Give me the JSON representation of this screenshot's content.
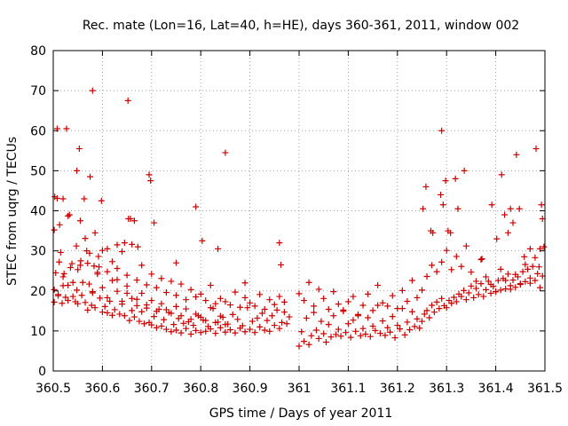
{
  "chart_data": {
    "type": "scatter",
    "title": "Rec. mate (Lon=16, Lat=40, h=HE), days 360-361, 2011, window 002",
    "xlabel": "GPS time / Days of year 2011",
    "ylabel": "STEC from uqrg / TECUs",
    "xlim": [
      360.5,
      361.5
    ],
    "ylim": [
      0,
      80
    ],
    "xticks": [
      360.5,
      360.6,
      360.7,
      360.8,
      360.9,
      361,
      361.1,
      361.2,
      361.3,
      361.4,
      361.5
    ],
    "xtick_labels": [
      "360.5",
      "360.6",
      "360.7",
      "360.8",
      "360.9",
      "361",
      "361.1",
      "361.2",
      "361.3",
      "361.4",
      "361.5"
    ],
    "yticks": [
      0,
      10,
      20,
      30,
      40,
      50,
      60,
      70,
      80
    ],
    "ytick_labels": [
      "0",
      "10",
      "20",
      "30",
      "40",
      "50",
      "60",
      "70",
      "80"
    ],
    "grid": true,
    "marker": "+",
    "marker_color": "#cc0000",
    "series": [
      {
        "x": [
          360.502,
          360.505,
          360.51,
          360.512,
          360.518,
          360.52,
          360.525,
          360.53,
          360.535,
          360.54,
          360.545,
          360.548,
          360.55,
          360.555,
          360.558,
          360.565,
          360.57,
          360.573,
          360.578,
          360.58,
          360.585,
          360.59,
          360.595,
          360.6,
          360.605,
          360.61,
          360.615,
          360.62,
          360.625,
          360.63,
          360.635,
          360.64,
          360.645,
          360.65,
          360.655,
          360.66,
          360.665,
          360.67,
          360.675,
          360.68,
          360.685,
          360.69,
          360.695,
          360.7,
          360.705,
          360.71,
          360.715,
          360.72,
          360.725,
          360.73,
          360.735,
          360.74,
          360.745,
          360.75,
          360.755,
          360.76,
          360.765,
          360.77,
          360.775,
          360.78,
          360.785,
          360.79,
          360.795,
          360.8,
          360.805,
          360.81,
          360.815,
          360.82,
          360.825,
          360.83,
          360.835,
          360.84,
          360.845,
          360.85,
          360.855,
          360.86,
          360.865,
          360.87,
          360.875,
          360.88,
          360.885,
          360.89,
          360.895,
          360.9,
          360.905,
          360.91,
          360.915,
          360.92,
          360.925,
          360.93,
          360.935,
          360.94,
          360.945,
          360.95,
          360.955,
          360.96,
          360.965,
          360.97,
          360.975,
          360.98,
          360.502,
          360.508,
          360.515,
          360.522,
          360.53,
          360.538,
          360.547,
          360.556,
          360.565,
          360.574,
          360.583,
          360.592,
          360.6,
          360.61,
          360.62,
          360.63,
          360.64,
          360.65,
          360.66,
          360.67,
          360.68,
          360.69,
          360.7,
          360.71,
          360.72,
          360.73,
          360.74,
          360.75,
          360.76,
          360.77,
          360.78,
          360.79,
          360.8,
          360.81,
          360.82,
          360.83,
          360.84,
          360.85,
          360.86,
          360.87,
          360.88,
          360.89,
          360.9,
          360.91,
          360.92,
          360.93,
          360.94,
          360.95,
          360.96,
          360.97,
          360.502,
          360.51,
          360.52,
          360.53,
          360.54,
          360.55,
          360.56,
          360.57,
          360.58,
          360.59,
          360.6,
          360.61,
          360.62,
          360.63,
          360.64,
          360.65,
          360.66,
          360.67,
          360.68,
          360.69,
          360.7,
          360.71,
          360.72,
          360.73,
          360.74,
          360.75,
          360.76,
          360.77,
          360.78,
          360.79,
          360.8,
          360.81,
          360.82,
          360.83,
          360.84,
          360.85,
          360.503,
          360.508,
          360.513,
          360.52,
          360.527,
          360.533,
          360.548,
          360.553,
          360.555,
          360.563,
          360.568,
          360.575,
          360.58,
          360.585,
          360.593,
          360.598,
          360.61,
          360.63,
          360.645,
          360.652,
          360.653,
          360.657,
          360.665,
          360.672,
          360.695,
          360.698,
          360.705,
          360.75,
          360.79,
          360.803,
          360.835,
          360.85,
          360.89,
          360.96,
          360.963,
          361.0,
          361.005,
          361.01,
          361.015,
          361.02,
          361.025,
          361.03,
          361.035,
          361.04,
          361.045,
          361.05,
          361.055,
          361.06,
          361.065,
          361.07,
          361.075,
          361.08,
          361.085,
          361.09,
          361.095,
          361.1,
          361.105,
          361.11,
          361.115,
          361.12,
          361.125,
          361.13,
          361.135,
          361.14,
          361.145,
          361.15,
          361.155,
          361.16,
          361.165,
          361.17,
          361.175,
          361.18,
          361.185,
          361.19,
          361.195,
          361.2,
          361.205,
          361.21,
          361.215,
          361.22,
          361.225,
          361.23,
          361.235,
          361.24,
          361.245,
          361.0,
          361.01,
          361.02,
          361.03,
          361.04,
          361.05,
          361.06,
          361.07,
          361.08,
          361.09,
          361.1,
          361.11,
          361.12,
          361.13,
          361.14,
          361.15,
          361.16,
          361.17,
          361.18,
          361.19,
          361.2,
          361.21,
          361.22,
          361.23,
          361.24,
          361.25,
          361.255,
          361.26,
          361.265,
          361.27,
          361.275,
          361.28,
          361.285,
          361.29,
          361.295,
          361.3,
          361.305,
          361.31,
          361.315,
          361.32,
          361.325,
          361.33,
          361.335,
          361.34,
          361.345,
          361.35,
          361.355,
          361.36,
          361.365,
          361.37,
          361.375,
          361.38,
          361.385,
          361.39,
          361.395,
          361.4,
          361.405,
          361.41,
          361.415,
          361.42,
          361.425,
          361.43,
          361.435,
          361.44,
          361.445,
          361.45,
          361.455,
          361.46,
          361.465,
          361.47,
          361.475,
          361.48,
          361.485,
          361.49,
          361.495,
          361.25,
          361.26,
          361.27,
          361.28,
          361.29,
          361.3,
          361.31,
          361.32,
          361.33,
          361.34,
          361.35,
          361.36,
          361.37,
          361.38,
          361.39,
          361.4,
          361.41,
          361.42,
          361.43,
          361.44,
          361.45,
          361.46,
          361.47,
          361.48,
          361.49,
          361.252,
          361.258,
          361.268,
          361.272,
          361.288,
          361.29,
          361.293,
          361.298,
          361.303,
          361.308,
          361.318,
          361.323,
          361.336,
          361.372,
          361.392,
          361.402,
          361.412,
          361.418,
          361.425,
          361.43,
          361.435,
          361.442,
          361.448,
          361.458,
          361.47,
          361.482,
          361.488,
          361.493,
          361.495,
          361.498
        ],
        "y": [
          17.2,
          24.5,
          18.8,
          27.2,
          16.9,
          21.3,
          18.4,
          17.6,
          25.8,
          22.1,
          17.3,
          20.2,
          16.8,
          26.4,
          18.9,
          17.1,
          15.2,
          21.7,
          16.4,
          19.8,
          15.8,
          24.6,
          18.2,
          14.7,
          16.1,
          14.5,
          17.4,
          13.9,
          15.3,
          22.8,
          14.2,
          16.7,
          13.8,
          19.4,
          12.6,
          15.1,
          13.5,
          17.9,
          12.4,
          14.8,
          11.8,
          16.5,
          12.1,
          11.5,
          13.6,
          10.8,
          15.4,
          11.2,
          12.8,
          10.4,
          14.6,
          9.8,
          11.6,
          10.2,
          13.1,
          9.5,
          11.9,
          10.6,
          12.3,
          9.2,
          11.4,
          10.1,
          13.8,
          9.6,
          12.7,
          9.9,
          11.1,
          10.5,
          15.6,
          9.4,
          12.2,
          10.8,
          13.4,
          9.7,
          11.7,
          10.3,
          14.1,
          9.5,
          12.9,
          10.7,
          11.3,
          9.8,
          15.8,
          10.4,
          12.4,
          9.6,
          13.2,
          11.0,
          14.4,
          10.2,
          12.6,
          9.9,
          13.8,
          11.4,
          15.2,
          10.6,
          12.1,
          14.7,
          11.8,
          13.5,
          35.2,
          43.1,
          29.6,
          24.3,
          38.7,
          26.8,
          31.2,
          27.5,
          33.1,
          29.4,
          26.2,
          28.6,
          30.1,
          24.8,
          27.3,
          25.6,
          29.8,
          23.9,
          31.6,
          22.7,
          26.4,
          21.5,
          24.2,
          20.8,
          23.1,
          19.6,
          22.4,
          18.9,
          21.7,
          17.8,
          20.3,
          18.5,
          19.2,
          17.6,
          21.4,
          16.8,
          18.1,
          17.3,
          16.5,
          19.7,
          15.9,
          18.3,
          17.0,
          16.2,
          19.1,
          15.4,
          17.8,
          16.6,
          18.6,
          17.2,
          20.3,
          19.1,
          23.5,
          21.4,
          18.6,
          25.3,
          22.1,
          26.9,
          19.5,
          24.2,
          20.8,
          18.3,
          22.6,
          19.9,
          17.4,
          21.2,
          18.1,
          16.3,
          19.4,
          15.7,
          17.6,
          14.9,
          16.8,
          15.3,
          14.4,
          16.1,
          13.8,
          15.5,
          12.9,
          14.2,
          13.4,
          12.6,
          15.8,
          12.1,
          13.7,
          11.6,
          43.5,
          60.5,
          36.5,
          43.0,
          60.5,
          39.0,
          50.0,
          55.5,
          37.5,
          43.0,
          30.0,
          48.5,
          70.0,
          34.5,
          26.0,
          42.5,
          30.5,
          31.5,
          32.0,
          67.5,
          38.0,
          38.0,
          37.5,
          31.0,
          49.0,
          47.5,
          37.0,
          27.0,
          41.0,
          32.5,
          30.5,
          54.5,
          22.0,
          32.0,
          26.5,
          6.2,
          9.8,
          7.4,
          13.2,
          6.6,
          8.8,
          14.6,
          10.2,
          8.1,
          12.4,
          9.3,
          7.2,
          11.6,
          8.5,
          13.8,
          9.1,
          10.4,
          8.7,
          15.2,
          9.6,
          11.8,
          8.4,
          12.7,
          9.9,
          14.1,
          8.8,
          10.6,
          9.2,
          13.3,
          8.6,
          11.2,
          10.1,
          16.4,
          9.4,
          12.5,
          8.9,
          10.8,
          9.7,
          13.6,
          8.3,
          11.4,
          10.5,
          15.6,
          9.0,
          12.2,
          10.3,
          14.8,
          11.1,
          13.0,
          10.7,
          19.3,
          17.6,
          22.1,
          16.2,
          20.4,
          18.1,
          15.4,
          19.8,
          16.7,
          14.9,
          17.3,
          18.6,
          13.8,
          16.4,
          19.2,
          15.1,
          21.4,
          17.0,
          16.2,
          18.8,
          15.6,
          20.1,
          17.4,
          22.6,
          18.3,
          12.4,
          14.2,
          15.1,
          13.3,
          16.4,
          14.7,
          17.2,
          15.6,
          18.1,
          16.3,
          15.8,
          17.6,
          16.9,
          18.4,
          17.3,
          19.2,
          18.6,
          20.1,
          17.8,
          19.5,
          21.2,
          18.3,
          20.6,
          19.1,
          21.8,
          18.6,
          20.3,
          22.4,
          19.4,
          21.1,
          19.8,
          22.6,
          20.2,
          23.1,
          20.5,
          24.2,
          21.3,
          22.7,
          20.9,
          23.5,
          21.6,
          24.8,
          22.3,
          25.4,
          21.9,
          26.1,
          22.6,
          24.3,
          20.8,
          23.7,
          20.2,
          23.6,
          26.4,
          24.8,
          27.2,
          30.1,
          25.3,
          28.6,
          26.1,
          31.2,
          24.7,
          22.4,
          27.8,
          23.5,
          21.6,
          19.8,
          25.4,
          22.6,
          20.4,
          24.1,
          21.8,
          26.6,
          23.2,
          28.3,
          30.5,
          40.5,
          46.0,
          35.0,
          34.5,
          44.0,
          60.0,
          41.5,
          47.5,
          35.0,
          34.5,
          48.0,
          40.5,
          50.0,
          28.0,
          41.5,
          33.0,
          49.0,
          39.0,
          34.5,
          40.5,
          37.0,
          54.0,
          40.5,
          28.5,
          30.5,
          55.5,
          26.0,
          41.5,
          38.0,
          31.0
        ]
      }
    ]
  }
}
